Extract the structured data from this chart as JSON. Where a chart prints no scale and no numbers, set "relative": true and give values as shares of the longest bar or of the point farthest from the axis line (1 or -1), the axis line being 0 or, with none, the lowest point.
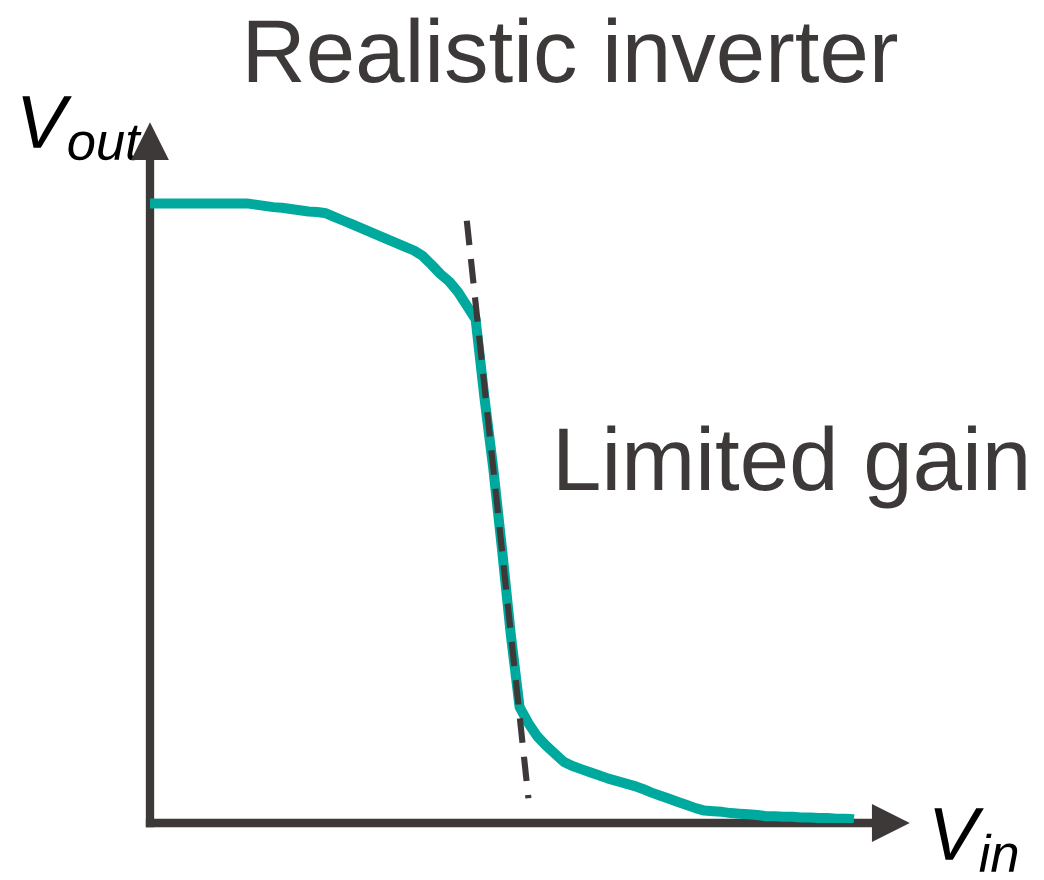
{
  "chart_data": {
    "type": "line",
    "relative": true,
    "title": "Realistic inverter",
    "xlabel": "V$_{in}$",
    "ylabel": "V$_{out}$",
    "annotations": [
      "Limited gain"
    ],
    "categories": [
      null,
      null,
      null,
      null,
      null,
      null,
      null,
      null,
      null,
      null,
      null,
      null,
      null,
      null,
      null,
      null,
      null,
      null,
      null,
      null,
      null,
      null,
      null,
      null,
      null,
      null,
      null,
      null,
      null,
      null,
      null,
      null,
      null,
      null,
      null,
      null,
      null,
      null,
      null,
      null,
      null,
      null,
      null,
      null,
      null,
      null,
      null,
      null,
      null,
      null,
      null,
      null,
      null,
      null,
      null,
      null,
      null,
      null,
      null,
      null,
      null,
      null,
      null,
      null,
      null,
      null,
      null,
      null,
      null,
      null,
      null,
      null,
      null,
      null,
      null,
      null,
      null,
      null,
      null,
      null,
      null
    ],
    "series": [
      {
        "color": "#00a99d",
        "values": [
          1,
          1,
          1,
          1,
          1,
          1,
          1,
          1,
          1,
          1,
          1,
          1,
          0.998,
          0.996,
          0.994,
          0.993,
          0.991,
          0.989,
          0.987,
          0.986,
          0.984,
          0.978,
          0.972,
          0.966,
          0.96,
          0.954,
          0.948,
          0.942,
          0.936,
          0.93,
          0.924,
          0.915,
          0.901,
          0.886,
          0.874,
          0.857,
          0.835,
          0.813,
          0.687,
          0.573,
          0.442,
          0.304,
          0.187,
          0.161,
          0.14,
          0.125,
          0.112,
          0.099,
          0.092,
          0.087,
          0.082,
          0.077,
          0.072,
          0.068,
          0.064,
          0.06,
          0.055,
          0.049,
          0.044,
          0.039,
          0.034,
          0.029,
          0.024,
          0.02,
          0.019,
          0.018,
          0.016,
          0.015,
          0.014,
          0.013,
          0.011,
          0.011,
          0.01,
          0.01,
          0.009,
          0.009,
          0.008,
          0.008,
          0.007,
          0.007,
          0.006
        ]
      },
      {
        "type": "line",
        "color": "#3d3938",
        "line_style": "dashed",
        "values": [
          null,
          null,
          null,
          null,
          null,
          null,
          null,
          null,
          null,
          null,
          null,
          null,
          null,
          null,
          null,
          null,
          null,
          null,
          null,
          null,
          null,
          null,
          null,
          null,
          null,
          null,
          null,
          null,
          null,
          null,
          null,
          null,
          null,
          null,
          null,
          null,
          0.972,
          0.839,
          0.706,
          0.573,
          0.44,
          0.306,
          0.173,
          0.04,
          null,
          null,
          null,
          null,
          null,
          null,
          null,
          null,
          null,
          null,
          null,
          null,
          null,
          null,
          null,
          null,
          null,
          null,
          null,
          null,
          null,
          null,
          null,
          null,
          null,
          null,
          null,
          null,
          null,
          null,
          null,
          null,
          null,
          null,
          null,
          null,
          null
        ]
      }
    ]
  }
}
